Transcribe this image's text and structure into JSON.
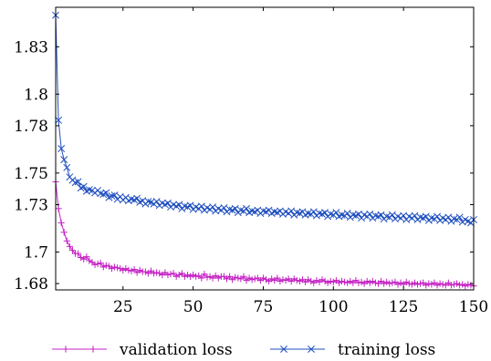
{
  "chart_data": {
    "type": "line",
    "title": "",
    "xlabel": "",
    "ylabel": "",
    "xlim": [
      1,
      150
    ],
    "ylim": [
      1.676,
      1.855
    ],
    "grid": false,
    "legend_position": "bottom",
    "x_ticks": [
      25,
      50,
      75,
      100,
      125,
      150
    ],
    "x_tick_labels": [
      "25",
      "50",
      "75",
      "100",
      "125",
      "150"
    ],
    "y_ticks": [
      1.68,
      1.7,
      1.73,
      1.75,
      1.78,
      1.8,
      1.83
    ],
    "y_tick_labels": [
      "1.68",
      "1.7",
      "1.73",
      "1.75",
      "1.78",
      "1.8",
      "1.83"
    ],
    "x": [
      1,
      2,
      3,
      4,
      5,
      6,
      7,
      8,
      9,
      10,
      11,
      12,
      13,
      14,
      15,
      16,
      17,
      18,
      19,
      20,
      21,
      22,
      23,
      24,
      25,
      26,
      27,
      28,
      29,
      30,
      31,
      32,
      33,
      34,
      35,
      36,
      37,
      38,
      39,
      40,
      41,
      42,
      43,
      44,
      45,
      46,
      47,
      48,
      49,
      50,
      51,
      52,
      53,
      54,
      55,
      56,
      57,
      58,
      59,
      60,
      61,
      62,
      63,
      64,
      65,
      66,
      67,
      68,
      69,
      70,
      71,
      72,
      73,
      74,
      75,
      76,
      77,
      78,
      79,
      80,
      81,
      82,
      83,
      84,
      85,
      86,
      87,
      88,
      89,
      90,
      91,
      92,
      93,
      94,
      95,
      96,
      97,
      98,
      99,
      100,
      101,
      102,
      103,
      104,
      105,
      106,
      107,
      108,
      109,
      110,
      111,
      112,
      113,
      114,
      115,
      116,
      117,
      118,
      119,
      120,
      121,
      122,
      123,
      124,
      125,
      126,
      127,
      128,
      129,
      130,
      131,
      132,
      133,
      134,
      135,
      136,
      137,
      138,
      139,
      140,
      141,
      142,
      143,
      144,
      145,
      146,
      147,
      148,
      149,
      150
    ],
    "series": [
      {
        "name": "validation loss",
        "color": "#c41fc4",
        "marker": "plus",
        "values": [
          1.7445,
          1.7275,
          1.7185,
          1.7125,
          1.707,
          1.7035,
          1.701,
          1.699,
          1.699,
          1.6965,
          1.6955,
          1.697,
          1.6945,
          1.6935,
          1.692,
          1.6925,
          1.693,
          1.6905,
          1.6915,
          1.691,
          1.6895,
          1.6905,
          1.69,
          1.6895,
          1.6885,
          1.6895,
          1.6885,
          1.688,
          1.689,
          1.687,
          1.6885,
          1.6875,
          1.6875,
          1.6865,
          1.688,
          1.6865,
          1.687,
          1.6865,
          1.6855,
          1.687,
          1.6855,
          1.686,
          1.6865,
          1.6845,
          1.6855,
          1.6865,
          1.6845,
          1.6855,
          1.6845,
          1.6855,
          1.6845,
          1.685,
          1.6835,
          1.686,
          1.684,
          1.6845,
          1.6835,
          1.685,
          1.6835,
          1.6845,
          1.6845,
          1.683,
          1.6845,
          1.6825,
          1.684,
          1.6835,
          1.683,
          1.6845,
          1.682,
          1.6835,
          1.6825,
          1.683,
          1.6835,
          1.682,
          1.6835,
          1.6825,
          1.6815,
          1.683,
          1.682,
          1.6835,
          1.6815,
          1.6825,
          1.682,
          1.683,
          1.6815,
          1.683,
          1.682,
          1.6815,
          1.6825,
          1.681,
          1.6825,
          1.6815,
          1.6805,
          1.682,
          1.681,
          1.6825,
          1.6815,
          1.6805,
          1.6815,
          1.681,
          1.682,
          1.6805,
          1.6815,
          1.681,
          1.6805,
          1.6815,
          1.6805,
          1.682,
          1.6805,
          1.681,
          1.68,
          1.6815,
          1.6805,
          1.6815,
          1.6805,
          1.68,
          1.6815,
          1.68,
          1.681,
          1.68,
          1.6805,
          1.681,
          1.6795,
          1.6805,
          1.6795,
          1.681,
          1.68,
          1.6795,
          1.6805,
          1.6795,
          1.68,
          1.6805,
          1.679,
          1.68,
          1.6795,
          1.6805,
          1.679,
          1.68,
          1.6795,
          1.679,
          1.6805,
          1.679,
          1.6795,
          1.68,
          1.679,
          1.6795,
          1.6785,
          1.6795,
          1.679,
          1.6785
        ]
      },
      {
        "name": "training loss",
        "color": "#1f4fbf",
        "marker": "x",
        "values": [
          1.85,
          1.7835,
          1.7655,
          1.7585,
          1.7535,
          1.7475,
          1.7455,
          1.744,
          1.7445,
          1.7405,
          1.7415,
          1.7385,
          1.7395,
          1.739,
          1.7375,
          1.739,
          1.737,
          1.7365,
          1.7375,
          1.7345,
          1.7355,
          1.736,
          1.7335,
          1.735,
          1.733,
          1.7345,
          1.7325,
          1.7335,
          1.733,
          1.734,
          1.7315,
          1.7325,
          1.7305,
          1.732,
          1.7315,
          1.7305,
          1.732,
          1.7295,
          1.731,
          1.73,
          1.731,
          1.7285,
          1.73,
          1.729,
          1.73,
          1.7275,
          1.729,
          1.7285,
          1.7295,
          1.727,
          1.7285,
          1.7275,
          1.729,
          1.7265,
          1.728,
          1.727,
          1.7285,
          1.726,
          1.7275,
          1.7265,
          1.728,
          1.7255,
          1.727,
          1.7265,
          1.7275,
          1.725,
          1.7265,
          1.726,
          1.7275,
          1.725,
          1.726,
          1.7255,
          1.7265,
          1.7245,
          1.726,
          1.7255,
          1.7265,
          1.7245,
          1.7255,
          1.725,
          1.726,
          1.724,
          1.7255,
          1.7245,
          1.726,
          1.7235,
          1.725,
          1.7245,
          1.7255,
          1.7235,
          1.7245,
          1.724,
          1.7255,
          1.723,
          1.7245,
          1.724,
          1.725,
          1.7225,
          1.724,
          1.7235,
          1.725,
          1.7225,
          1.7235,
          1.723,
          1.7245,
          1.722,
          1.7235,
          1.723,
          1.724,
          1.7215,
          1.7235,
          1.7225,
          1.724,
          1.7215,
          1.723,
          1.7225,
          1.7235,
          1.721,
          1.7225,
          1.722,
          1.7235,
          1.721,
          1.7225,
          1.7215,
          1.723,
          1.7205,
          1.7225,
          1.7215,
          1.723,
          1.7205,
          1.722,
          1.7215,
          1.7225,
          1.72,
          1.7215,
          1.721,
          1.7225,
          1.72,
          1.7215,
          1.7205,
          1.722,
          1.7195,
          1.721,
          1.7205,
          1.722,
          1.719,
          1.7205,
          1.7195,
          1.7185,
          1.7205
        ]
      }
    ]
  }
}
